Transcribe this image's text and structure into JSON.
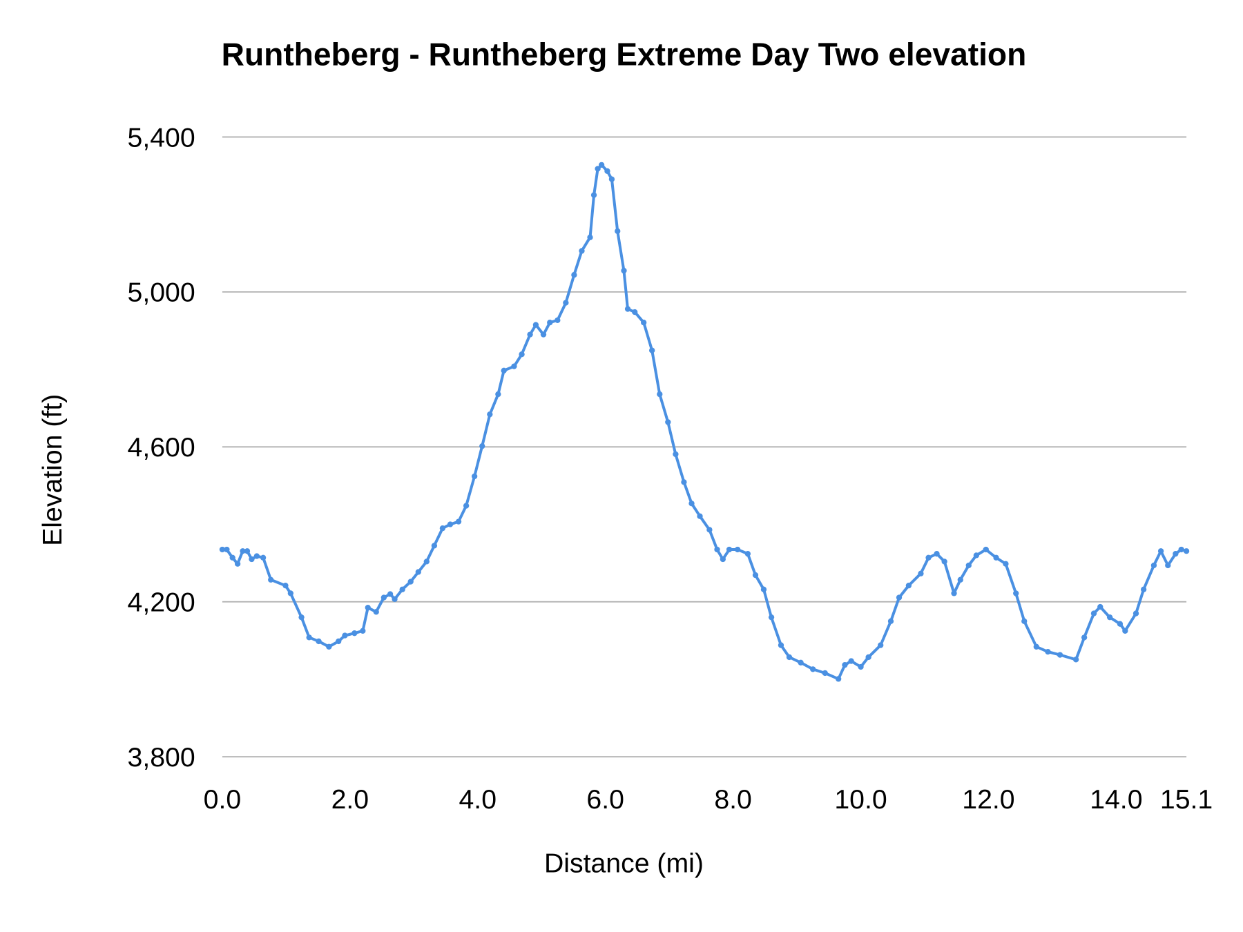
{
  "chart_data": {
    "type": "line",
    "title": "Runtheberg - Runtheberg Extreme Day Two elevation",
    "xlabel": "Distance (mi)",
    "ylabel": "Elevation (ft)",
    "xlim": [
      0,
      15.1
    ],
    "ylim": [
      3800,
      5400
    ],
    "x_ticks": [
      0,
      2,
      4,
      6,
      8,
      10,
      12,
      14,
      15.1
    ],
    "x_tick_labels": [
      "0.0",
      "2.0",
      "4.0",
      "6.0",
      "8.0",
      "10.0",
      "12.0",
      "14.0",
      "15.1"
    ],
    "y_ticks": [
      3800,
      4200,
      4600,
      5000,
      5400
    ],
    "y_tick_labels": [
      "3,800",
      "4,200",
      "4,600",
      "5,000",
      "5,400"
    ],
    "grid": "horizontal",
    "markers": true,
    "color": "#4a90e2",
    "points": [
      [
        0,
        4335
      ],
      [
        0.07,
        4335
      ],
      [
        0.16,
        4314
      ],
      [
        0.24,
        4298
      ],
      [
        0.32,
        4331
      ],
      [
        0.39,
        4331
      ],
      [
        0.46,
        4310
      ],
      [
        0.54,
        4318
      ],
      [
        0.64,
        4314
      ],
      [
        0.76,
        4257
      ],
      [
        0.99,
        4242
      ],
      [
        1.07,
        4222
      ],
      [
        1.24,
        4160
      ],
      [
        1.36,
        4108
      ],
      [
        1.51,
        4098
      ],
      [
        1.67,
        4084
      ],
      [
        1.82,
        4098
      ],
      [
        1.92,
        4113
      ],
      [
        2.07,
        4119
      ],
      [
        2.2,
        4125
      ],
      [
        2.28,
        4185
      ],
      [
        2.41,
        4174
      ],
      [
        2.53,
        4211
      ],
      [
        2.63,
        4220
      ],
      [
        2.7,
        4207
      ],
      [
        2.82,
        4232
      ],
      [
        2.95,
        4252
      ],
      [
        3.07,
        4277
      ],
      [
        3.2,
        4304
      ],
      [
        3.32,
        4345
      ],
      [
        3.45,
        4390
      ],
      [
        3.57,
        4400
      ],
      [
        3.7,
        4407
      ],
      [
        3.82,
        4448
      ],
      [
        3.95,
        4524
      ],
      [
        4.07,
        4602
      ],
      [
        4.19,
        4684
      ],
      [
        4.32,
        4736
      ],
      [
        4.41,
        4797
      ],
      [
        4.57,
        4808
      ],
      [
        4.69,
        4839
      ],
      [
        4.82,
        4890
      ],
      [
        4.91,
        4915
      ],
      [
        5.03,
        4890
      ],
      [
        5.13,
        4921
      ],
      [
        5.25,
        4927
      ],
      [
        5.38,
        4972
      ],
      [
        5.51,
        5044
      ],
      [
        5.63,
        5106
      ],
      [
        5.76,
        5141
      ],
      [
        5.82,
        5250
      ],
      [
        5.88,
        5318
      ],
      [
        5.94,
        5328
      ],
      [
        6.03,
        5312
      ],
      [
        6.1,
        5291
      ],
      [
        6.19,
        5157
      ],
      [
        6.29,
        5055
      ],
      [
        6.35,
        4956
      ],
      [
        6.46,
        4948
      ],
      [
        6.6,
        4921
      ],
      [
        6.73,
        4849
      ],
      [
        6.85,
        4736
      ],
      [
        6.98,
        4664
      ],
      [
        7.1,
        4581
      ],
      [
        7.23,
        4509
      ],
      [
        7.35,
        4454
      ],
      [
        7.48,
        4421
      ],
      [
        7.63,
        4386
      ],
      [
        7.75,
        4335
      ],
      [
        7.84,
        4310
      ],
      [
        7.94,
        4335
      ],
      [
        8.07,
        4335
      ],
      [
        8.23,
        4324
      ],
      [
        8.35,
        4269
      ],
      [
        8.48,
        4232
      ],
      [
        8.6,
        4160
      ],
      [
        8.75,
        4088
      ],
      [
        8.88,
        4057
      ],
      [
        9.06,
        4043
      ],
      [
        9.25,
        4026
      ],
      [
        9.44,
        4016
      ],
      [
        9.65,
        4001
      ],
      [
        9.75,
        4037
      ],
      [
        9.85,
        4047
      ],
      [
        10.0,
        4032
      ],
      [
        10.12,
        4057
      ],
      [
        10.31,
        4088
      ],
      [
        10.47,
        4150
      ],
      [
        10.6,
        4211
      ],
      [
        10.75,
        4242
      ],
      [
        10.94,
        4273
      ],
      [
        11.06,
        4314
      ],
      [
        11.19,
        4324
      ],
      [
        11.31,
        4304
      ],
      [
        11.46,
        4222
      ],
      [
        11.56,
        4257
      ],
      [
        11.69,
        4294
      ],
      [
        11.81,
        4320
      ],
      [
        11.96,
        4335
      ],
      [
        12.12,
        4314
      ],
      [
        12.27,
        4298
      ],
      [
        12.43,
        4222
      ],
      [
        12.56,
        4150
      ],
      [
        12.75,
        4084
      ],
      [
        12.93,
        4071
      ],
      [
        13.12,
        4063
      ],
      [
        13.37,
        4051
      ],
      [
        13.5,
        4108
      ],
      [
        13.65,
        4170
      ],
      [
        13.75,
        4187
      ],
      [
        13.9,
        4160
      ],
      [
        14.06,
        4143
      ],
      [
        14.14,
        4125
      ],
      [
        14.31,
        4170
      ],
      [
        14.43,
        4232
      ],
      [
        14.59,
        4294
      ],
      [
        14.7,
        4331
      ],
      [
        14.81,
        4294
      ],
      [
        14.93,
        4324
      ],
      [
        15.02,
        4335
      ],
      [
        15.1,
        4331
      ]
    ]
  }
}
